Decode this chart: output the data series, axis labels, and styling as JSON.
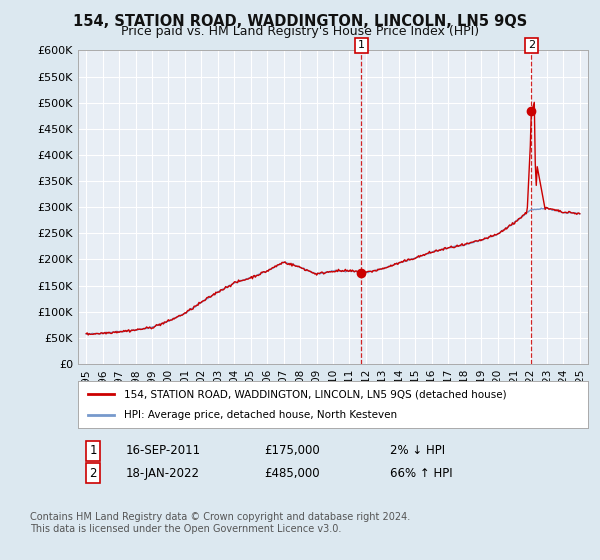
{
  "title": "154, STATION ROAD, WADDINGTON, LINCOLN, LN5 9QS",
  "subtitle": "Price paid vs. HM Land Registry's House Price Index (HPI)",
  "legend_line1": "154, STATION ROAD, WADDINGTON, LINCOLN, LN5 9QS (detached house)",
  "legend_line2": "HPI: Average price, detached house, North Kesteven",
  "footnote": "Contains HM Land Registry data © Crown copyright and database right 2024.\nThis data is licensed under the Open Government Licence v3.0.",
  "point1_x": 2011.72,
  "point1_y": 175000,
  "point2_x": 2022.05,
  "point2_y": 485000,
  "ylim": [
    0,
    600000
  ],
  "xlim": [
    1994.5,
    2025.5
  ],
  "background_color": "#dce8f0",
  "plot_bg": "#e8eef5",
  "red_color": "#cc0000",
  "blue_color": "#7799cc",
  "grid_color": "#ffffff",
  "yticks": [
    0,
    50000,
    100000,
    150000,
    200000,
    250000,
    300000,
    350000,
    400000,
    450000,
    500000,
    550000,
    600000
  ],
  "ytick_labels": [
    "£0",
    "£50K",
    "£100K",
    "£150K",
    "£200K",
    "£250K",
    "£300K",
    "£350K",
    "£400K",
    "£450K",
    "£500K",
    "£550K",
    "£600K"
  ],
  "row1_num": "1",
  "row1_date": "16-SEP-2011",
  "row1_price": "£175,000",
  "row1_hpi": "2% ↓ HPI",
  "row2_num": "2",
  "row2_date": "18-JAN-2022",
  "row2_price": "£485,000",
  "row2_hpi": "66% ↑ HPI"
}
